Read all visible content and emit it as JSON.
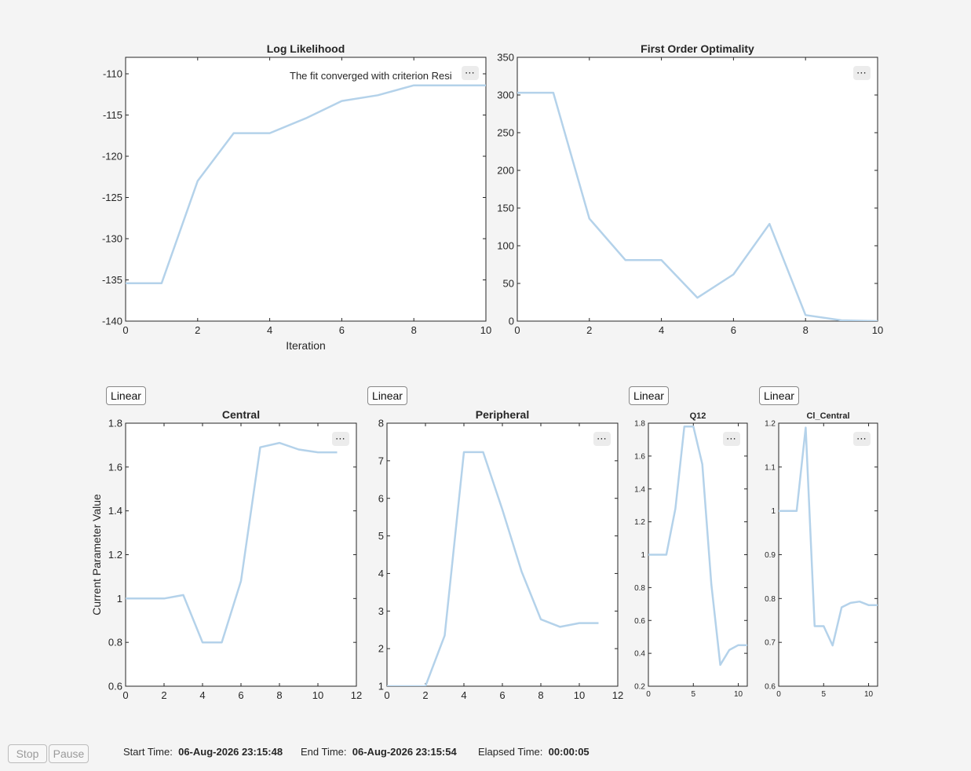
{
  "panels": [
    {
      "id": "loglik",
      "title": "Log Likelihood",
      "xlabel": "Iteration",
      "ylabel": "",
      "xlim": [
        0,
        10
      ],
      "ylim": [
        -140,
        -108
      ],
      "xticks": [
        0,
        2,
        4,
        6,
        8,
        10
      ],
      "yticks": [
        -140,
        -135,
        -130,
        -125,
        -120,
        -115,
        -110
      ],
      "x": [
        0,
        1,
        2,
        3,
        4,
        5,
        6,
        7,
        8,
        9,
        10
      ],
      "y": [
        -135.4,
        -135.4,
        -123.0,
        -117.2,
        -117.2,
        -115.4,
        -113.3,
        -112.6,
        -111.4,
        -111.4,
        -111.4
      ],
      "annotation": "The fit converged with criterion Resi"
    },
    {
      "id": "optimality",
      "title": "First Order Optimality",
      "xlabel": "",
      "ylabel": "",
      "xlim": [
        0,
        10
      ],
      "ylim": [
        0,
        350
      ],
      "xticks": [
        0,
        2,
        4,
        6,
        8,
        10
      ],
      "yticks": [
        0,
        50,
        100,
        150,
        200,
        250,
        300,
        350
      ],
      "x": [
        0,
        1,
        2,
        3,
        4,
        5,
        6,
        7,
        8,
        9,
        10
      ],
      "y": [
        303,
        303,
        136,
        81,
        81,
        31,
        62,
        129,
        8,
        1,
        0
      ]
    },
    {
      "id": "central",
      "title": "Central",
      "xlabel": "",
      "ylabel": "Current Parameter Value",
      "xlim": [
        0,
        12
      ],
      "ylim": [
        0.6,
        1.8
      ],
      "xticks": [
        0,
        2,
        4,
        6,
        8,
        10,
        12
      ],
      "yticks": [
        0.6,
        0.8,
        1,
        1.2,
        1.4,
        1.6,
        1.8
      ],
      "x": [
        0,
        1,
        2,
        3,
        4,
        5,
        6,
        7,
        8,
        9,
        10,
        11
      ],
      "y": [
        1.0,
        1.0,
        1.0,
        1.016,
        0.8,
        0.8,
        1.08,
        1.69,
        1.71,
        1.68,
        1.667,
        1.667
      ]
    },
    {
      "id": "peripheral",
      "title": "Peripheral",
      "xlabel": "",
      "ylabel": "",
      "xlim": [
        0,
        12
      ],
      "ylim": [
        1,
        8
      ],
      "xticks": [
        0,
        2,
        4,
        6,
        8,
        10,
        12
      ],
      "yticks": [
        1,
        2,
        3,
        4,
        5,
        6,
        7,
        8
      ],
      "x": [
        0,
        1,
        2,
        3,
        4,
        5,
        6,
        7,
        8,
        9,
        10,
        11
      ],
      "y": [
        1.0,
        1.0,
        1.0,
        2.35,
        7.23,
        7.23,
        5.7,
        4.05,
        2.78,
        2.58,
        2.68,
        2.68
      ]
    },
    {
      "id": "q12",
      "title": "Q12",
      "xlabel": "",
      "ylabel": "",
      "xlim": [
        0,
        11
      ],
      "ylim": [
        0.2,
        1.8
      ],
      "xticks": [
        0,
        5,
        10
      ],
      "yticks": [
        0.2,
        0.4,
        0.6,
        0.8,
        1,
        1.2,
        1.4,
        1.6,
        1.8
      ],
      "x": [
        0,
        1,
        2,
        3,
        4,
        5,
        6,
        7,
        8,
        9,
        10,
        11
      ],
      "y": [
        1.0,
        1.0,
        1.0,
        1.28,
        1.78,
        1.78,
        1.55,
        0.82,
        0.33,
        0.42,
        0.45,
        0.45
      ]
    },
    {
      "id": "cl_central",
      "title": "Cl_Central",
      "xlabel": "",
      "ylabel": "",
      "xlim": [
        0,
        11
      ],
      "ylim": [
        0.6,
        1.2
      ],
      "xticks": [
        0,
        5,
        10
      ],
      "yticks": [
        0.6,
        0.7,
        0.8,
        0.9,
        1,
        1.1,
        1.2
      ],
      "x": [
        0,
        1,
        2,
        3,
        4,
        5,
        6,
        7,
        8,
        9,
        10,
        11
      ],
      "y": [
        1.0,
        1.0,
        1.0,
        1.19,
        0.737,
        0.737,
        0.693,
        0.78,
        0.79,
        0.793,
        0.785,
        0.785
      ]
    }
  ],
  "scale_button_label": "Linear",
  "more_options_glyph": "⋯",
  "line_color": "#b4d2ea",
  "controls": {
    "stop": "Stop",
    "pause": "Pause"
  },
  "status": {
    "start_label": "Start Time:",
    "start_value": "06-Aug-2026 23:15:48",
    "end_label": "End Time:",
    "end_value": "06-Aug-2026 23:15:54",
    "elapsed_label": "Elapsed Time:",
    "elapsed_value": "00:00:05"
  }
}
